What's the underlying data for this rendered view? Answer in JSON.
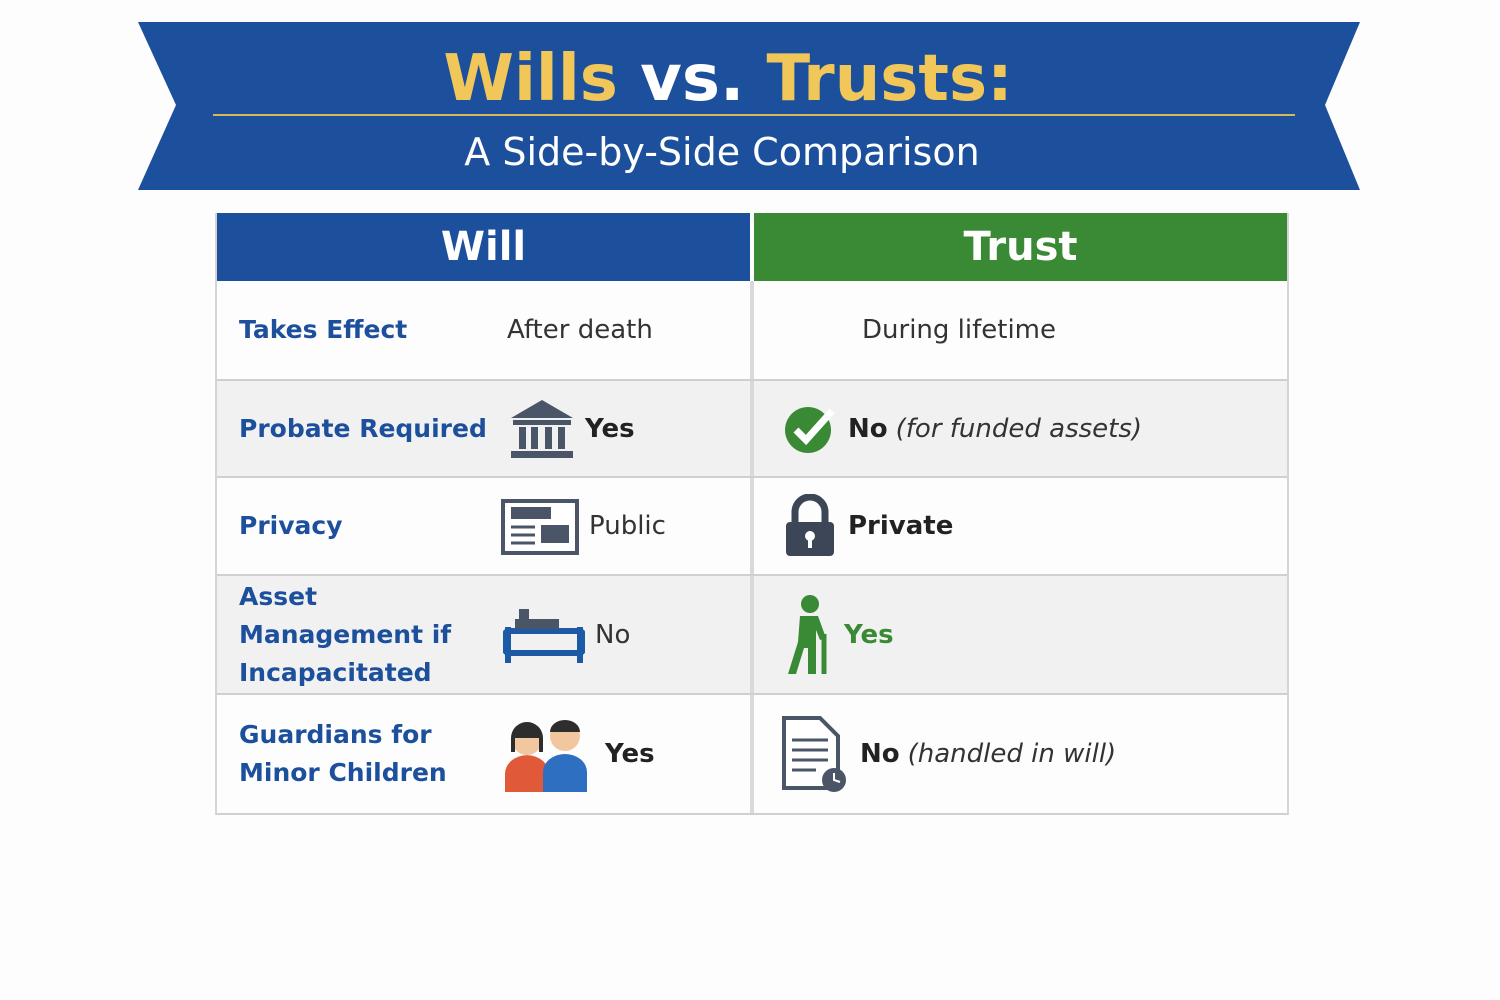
{
  "header": {
    "title_parts": [
      "Wills",
      "vs.",
      "Trusts:"
    ],
    "subtitle": "A Side-by-Side Comparison"
  },
  "table": {
    "columns": [
      "Will",
      "Trust"
    ],
    "rows": [
      {
        "label": "Takes Effect",
        "will": {
          "text": "After death"
        },
        "trust": {
          "text": "During lifetime"
        }
      },
      {
        "label": "Probate Required",
        "will": {
          "text": "Yes"
        },
        "trust": {
          "text": "No",
          "note": "(for funded assets)"
        }
      },
      {
        "label": "Privacy",
        "will": {
          "text": "Public"
        },
        "trust": {
          "text": "Private"
        }
      },
      {
        "label": "Asset Management if Incapacitated",
        "will": {
          "text": "No"
        },
        "trust": {
          "text": "Yes"
        }
      },
      {
        "label": "Guardians for Minor Children",
        "will": {
          "text": "Yes"
        },
        "trust": {
          "text": "No",
          "note": "(handled in will)"
        }
      }
    ]
  }
}
